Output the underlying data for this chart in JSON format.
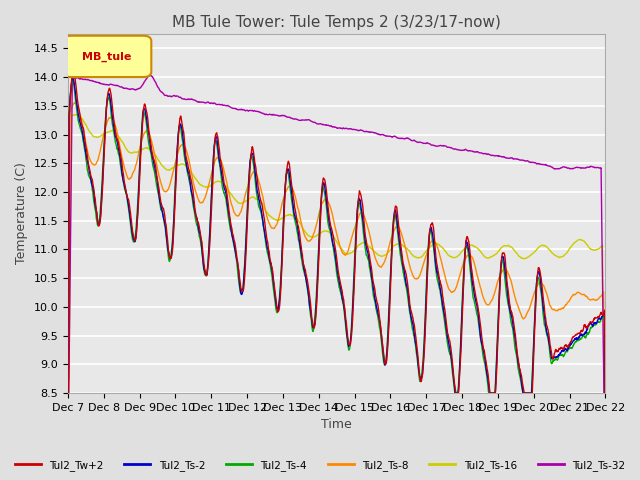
{
  "title": "MB Tule Tower: Tule Temps 2 (3/23/17-now)",
  "xlabel": "Time",
  "ylabel": "Temperature (C)",
  "ylim": [
    8.5,
    14.75
  ],
  "yticks": [
    8.5,
    9.0,
    9.5,
    10.0,
    10.5,
    11.0,
    11.5,
    12.0,
    12.5,
    13.0,
    13.5,
    14.0,
    14.5
  ],
  "xtick_labels": [
    "Dec 7",
    "Dec 8",
    "Dec 9",
    "Dec 10",
    "Dec 11",
    "Dec 12",
    "Dec 13",
    "Dec 14",
    "Dec 15",
    "Dec 16",
    "Dec 17",
    "Dec 18",
    "Dec 19",
    "Dec 20",
    "Dec 21",
    "Dec 22"
  ],
  "background_color": "#e0e0e0",
  "plot_bg_color": "#e8e8e8",
  "grid_color": "#ffffff",
  "series": {
    "Tul2_Tw+2": {
      "color": "#cc0000",
      "lw": 1.0
    },
    "Tul2_Ts-2": {
      "color": "#0000cc",
      "lw": 1.0
    },
    "Tul2_Ts-4": {
      "color": "#00aa00",
      "lw": 1.0
    },
    "Tul2_Ts-8": {
      "color": "#ff8800",
      "lw": 1.0
    },
    "Tul2_Ts-16": {
      "color": "#cccc00",
      "lw": 1.0
    },
    "Tul2_Ts-32": {
      "color": "#aa00aa",
      "lw": 1.0
    }
  },
  "legend_label": "MB_tule",
  "legend_bg": "#ffff99",
  "legend_border": "#cc8800",
  "title_fontsize": 11,
  "axis_fontsize": 9,
  "tick_fontsize": 8
}
